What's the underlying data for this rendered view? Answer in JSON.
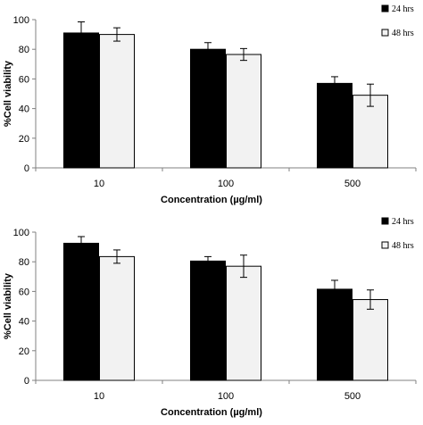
{
  "chart_data": [
    {
      "type": "bar",
      "categories": [
        "10",
        "100",
        "500"
      ],
      "series": [
        {
          "name": "24 hrs",
          "values": [
            91,
            80,
            57
          ],
          "errors": [
            7.5,
            4.5,
            4.5
          ],
          "color": "#000000"
        },
        {
          "name": "48 hrs",
          "values": [
            90,
            76.5,
            49
          ],
          "errors": [
            4.5,
            4.0,
            7.5
          ],
          "color": "#f2f2f2"
        }
      ],
      "xlabel": "Concentration (µg/ml)",
      "ylabel": "%Cell viability",
      "ylim": [
        0,
        100
      ],
      "yticks": [
        0,
        20,
        40,
        60,
        80,
        100
      ],
      "legend": "top-right",
      "grid": false
    },
    {
      "type": "bar",
      "categories": [
        "10",
        "100",
        "500"
      ],
      "series": [
        {
          "name": "24 hrs",
          "values": [
            92.5,
            80.5,
            61.5
          ],
          "errors": [
            4.5,
            3.0,
            6.0
          ],
          "color": "#000000"
        },
        {
          "name": "48 hrs",
          "values": [
            83.5,
            77,
            54.5
          ],
          "errors": [
            4.5,
            7.5,
            6.5
          ],
          "color": "#f2f2f2"
        }
      ],
      "xlabel": "Concentration (µg/ml)",
      "ylabel": "%Cell viability",
      "ylim": [
        0,
        100
      ],
      "yticks": [
        0,
        20,
        40,
        60,
        80,
        100
      ],
      "legend": "top-right",
      "grid": false
    }
  ]
}
